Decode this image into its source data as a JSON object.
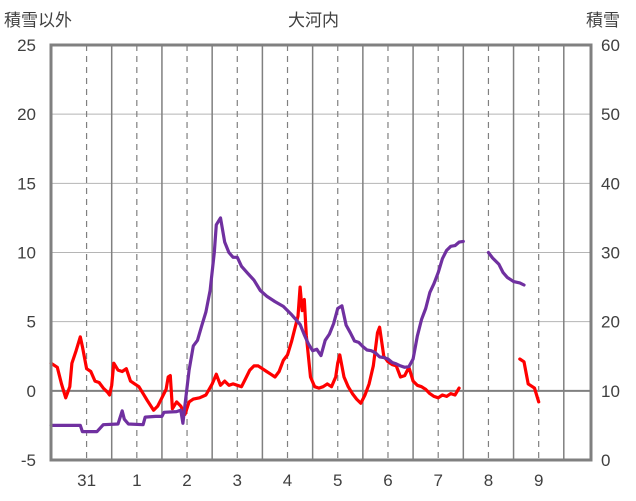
{
  "chart_data": {
    "type": "line",
    "title": "大河内",
    "y_left_label": "積雪以外",
    "y_right_label": "積雪",
    "y_left_range": [
      -5,
      25
    ],
    "y_left_ticks": [
      -5,
      0,
      5,
      10,
      15,
      20,
      25
    ],
    "y_right_range": [
      0,
      60
    ],
    "y_right_ticks": [
      0,
      10,
      20,
      30,
      40,
      50,
      60
    ],
    "x_range_hours": [
      0,
      258
    ],
    "x_tick_labels": [
      "31",
      "1",
      "2",
      "3",
      "4",
      "5",
      "6",
      "7",
      "8",
      "9"
    ],
    "x_tick_hours": [
      17,
      41,
      65,
      89,
      113,
      137,
      161,
      185,
      209,
      233
    ],
    "x_solid_lines_hours": [
      29,
      53,
      77,
      101,
      125,
      149,
      173,
      197,
      221,
      245
    ],
    "x_dashed_lines_hours": [
      17,
      41,
      65,
      89,
      113,
      137,
      161,
      185,
      209,
      233
    ],
    "grid": true,
    "series": [
      {
        "name": "",
        "axis": "left",
        "color": "#ff0000",
        "points": [
          [
            0,
            2.0
          ],
          [
            3,
            1.7
          ],
          [
            5,
            0.5
          ],
          [
            7,
            -0.5
          ],
          [
            9,
            0.3
          ],
          [
            10,
            2.0
          ],
          [
            12,
            2.9
          ],
          [
            14,
            3.9
          ],
          [
            15,
            3.2
          ],
          [
            17,
            1.6
          ],
          [
            19,
            1.4
          ],
          [
            21,
            0.7
          ],
          [
            23,
            0.6
          ],
          [
            25,
            0.2
          ],
          [
            27,
            -0.1
          ],
          [
            28,
            -0.3
          ],
          [
            29,
            0.4
          ],
          [
            30,
            2.0
          ],
          [
            32,
            1.5
          ],
          [
            34,
            1.4
          ],
          [
            36,
            1.6
          ],
          [
            38,
            0.7
          ],
          [
            40,
            0.5
          ],
          [
            42,
            0.3
          ],
          [
            44,
            -0.2
          ],
          [
            46,
            -0.7
          ],
          [
            49,
            -1.4
          ],
          [
            51,
            -1.1
          ],
          [
            53,
            -0.5
          ],
          [
            55,
            0.1
          ],
          [
            56,
            1.0
          ],
          [
            57,
            1.1
          ],
          [
            58,
            -1.3
          ],
          [
            60,
            -0.8
          ],
          [
            62,
            -1.1
          ],
          [
            64,
            -1.7
          ],
          [
            66,
            -0.8
          ],
          [
            68,
            -0.6
          ],
          [
            71,
            -0.5
          ],
          [
            74,
            -0.3
          ],
          [
            77,
            0.5
          ],
          [
            79,
            1.2
          ],
          [
            80,
            0.8
          ],
          [
            81,
            0.4
          ],
          [
            83,
            0.7
          ],
          [
            85,
            0.4
          ],
          [
            87,
            0.5
          ],
          [
            89,
            0.4
          ],
          [
            91,
            0.3
          ],
          [
            93,
            0.9
          ],
          [
            95,
            1.5
          ],
          [
            97,
            1.8
          ],
          [
            99,
            1.8
          ],
          [
            101,
            1.6
          ],
          [
            103,
            1.4
          ],
          [
            105,
            1.2
          ],
          [
            107,
            1.0
          ],
          [
            109,
            1.4
          ],
          [
            111,
            2.2
          ],
          [
            113,
            2.6
          ],
          [
            115,
            3.6
          ],
          [
            116,
            4.2
          ],
          [
            118,
            5.4
          ],
          [
            119,
            7.5
          ],
          [
            120,
            5.8
          ],
          [
            121,
            6.6
          ],
          [
            122,
            4.0
          ],
          [
            124,
            1.0
          ],
          [
            126,
            0.3
          ],
          [
            128,
            0.2
          ],
          [
            130,
            0.3
          ],
          [
            132,
            0.5
          ],
          [
            134,
            0.3
          ],
          [
            136,
            1.0
          ],
          [
            137,
            2.0
          ],
          [
            138,
            2.6
          ],
          [
            140,
            1.0
          ],
          [
            142,
            0.3
          ],
          [
            144,
            -0.2
          ],
          [
            146,
            -0.6
          ],
          [
            148,
            -0.9
          ],
          [
            150,
            -0.3
          ],
          [
            152,
            0.5
          ],
          [
            154,
            1.8
          ],
          [
            156,
            4.2
          ],
          [
            157,
            4.6
          ],
          [
            159,
            2.5
          ],
          [
            161,
            2.1
          ],
          [
            163,
            1.9
          ],
          [
            165,
            1.8
          ],
          [
            167,
            1.0
          ],
          [
            169,
            1.1
          ],
          [
            171,
            1.7
          ],
          [
            173,
            0.7
          ],
          [
            175,
            0.4
          ],
          [
            177,
            0.3
          ],
          [
            179,
            0.1
          ],
          [
            181,
            -0.2
          ],
          [
            183,
            -0.4
          ],
          [
            185,
            -0.5
          ],
          [
            187,
            -0.3
          ],
          [
            189,
            -0.4
          ],
          [
            191,
            -0.2
          ],
          [
            193,
            -0.3
          ],
          [
            195,
            0.2
          ],
          null,
          [
            224,
            2.3
          ],
          [
            226,
            2.1
          ],
          [
            228,
            0.5
          ],
          [
            231,
            0.2
          ],
          [
            233,
            -0.8
          ]
        ]
      },
      {
        "name": "",
        "axis": "right",
        "color": "#7030a0",
        "points": [
          [
            0,
            5
          ],
          [
            10,
            5
          ],
          [
            14,
            5
          ],
          [
            15,
            4.1
          ],
          [
            22,
            4.1
          ],
          [
            25,
            5.1
          ],
          [
            32,
            5.2
          ],
          [
            34,
            7.1
          ],
          [
            35,
            5.9
          ],
          [
            37,
            5.2
          ],
          [
            44,
            5.1
          ],
          [
            45,
            6.2
          ],
          [
            50,
            6.3
          ],
          [
            53,
            6.3
          ],
          [
            54,
            6.9
          ],
          [
            60,
            7
          ],
          [
            62,
            7.2
          ],
          [
            63,
            5.3
          ],
          [
            64,
            8
          ],
          [
            66,
            13
          ],
          [
            68,
            16.5
          ],
          [
            70,
            17.3
          ],
          [
            72,
            19.4
          ],
          [
            74,
            21.4
          ],
          [
            76,
            24.5
          ],
          [
            78,
            30
          ],
          [
            79,
            34
          ],
          [
            81,
            35
          ],
          [
            83,
            31.5
          ],
          [
            85,
            30
          ],
          [
            87,
            29.3
          ],
          [
            89,
            29.3
          ],
          [
            91,
            28
          ],
          [
            94,
            27
          ],
          [
            97,
            26
          ],
          [
            100,
            24.5
          ],
          [
            103,
            23.7
          ],
          [
            107,
            22.9
          ],
          [
            111,
            22.2
          ],
          [
            115,
            21
          ],
          [
            117,
            20.3
          ],
          [
            119,
            19.6
          ],
          [
            121,
            18.1
          ],
          [
            123,
            16.8
          ],
          [
            125,
            15.8
          ],
          [
            127,
            16
          ],
          [
            129,
            15.1
          ],
          [
            131,
            17.3
          ],
          [
            133,
            18.2
          ],
          [
            135,
            19.7
          ],
          [
            137,
            21.9
          ],
          [
            139,
            22.3
          ],
          [
            141,
            19.5
          ],
          [
            143,
            18.4
          ],
          [
            145,
            17.2
          ],
          [
            147,
            17.0
          ],
          [
            149,
            16.4
          ],
          [
            151,
            15.9
          ],
          [
            153,
            15.8
          ],
          [
            155,
            15.5
          ],
          [
            157,
            14.9
          ],
          [
            159,
            14.8
          ],
          [
            161,
            14.6
          ],
          [
            163,
            14.1
          ],
          [
            165,
            13.9
          ],
          [
            167,
            13.6
          ],
          [
            169,
            13.4
          ],
          [
            171,
            13.5
          ],
          [
            173,
            14.6
          ],
          [
            175,
            17.9
          ],
          [
            177,
            20.3
          ],
          [
            179,
            21.9
          ],
          [
            181,
            24.2
          ],
          [
            183,
            25.5
          ],
          [
            185,
            27.1
          ],
          [
            187,
            29.1
          ],
          [
            189,
            30.3
          ],
          [
            191,
            30.9
          ],
          [
            193,
            31
          ],
          [
            195,
            31.5
          ],
          [
            197,
            31.6
          ],
          null,
          [
            209,
            30
          ],
          [
            211,
            29.2
          ],
          [
            214,
            28.3
          ],
          [
            216,
            27.1
          ],
          [
            218,
            26.4
          ],
          [
            221,
            25.8
          ],
          [
            224,
            25.6
          ],
          [
            226,
            25.3
          ]
        ]
      }
    ]
  }
}
